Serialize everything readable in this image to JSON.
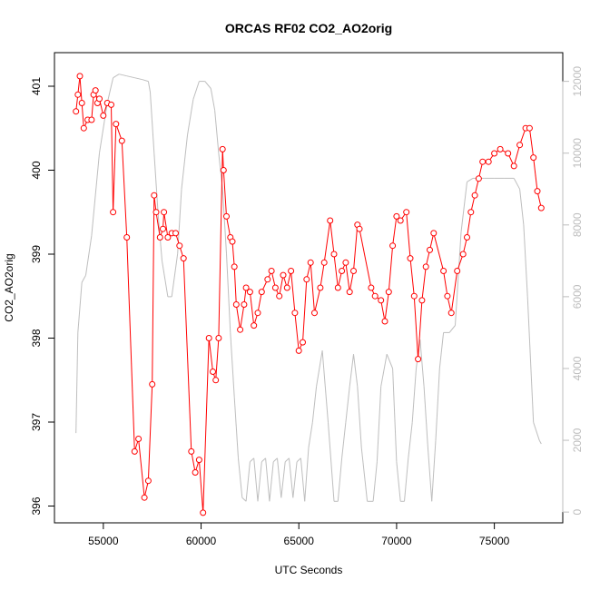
{
  "chart_data": {
    "type": "line",
    "title": "ORCAS RF02 CO2_AO2orig",
    "xlabel": "UTC Seconds",
    "ylabel": "CO2_AO2orig",
    "xlim": [
      52500,
      78500
    ],
    "ylim": [
      395.8,
      401.4
    ],
    "y2lim": [
      -300,
      12800
    ],
    "xticks": [
      55000,
      60000,
      65000,
      70000,
      75000
    ],
    "yticks": [
      396,
      397,
      398,
      399,
      400,
      401
    ],
    "y2ticks": [
      0,
      2000,
      4000,
      6000,
      8000,
      10000,
      12000
    ],
    "xtick_labels": [
      "55000",
      "60000",
      "65000",
      "70000",
      "75000"
    ],
    "ytick_labels": [
      "396",
      "397",
      "398",
      "399",
      "400",
      "401"
    ],
    "y2tick_labels": [
      "0",
      "2000",
      "4000",
      "6000",
      "8000",
      "10000",
      "12000"
    ],
    "grid": false,
    "colors": {
      "co2": "#ff0000",
      "altitude": "#bebebe",
      "right_axis": "#bdbdbd"
    },
    "series": [
      {
        "axis": "left",
        "style": "line+circle-markers",
        "x": [
          53600,
          53700,
          53800,
          53900,
          54000,
          54200,
          54400,
          54500,
          54600,
          54700,
          54800,
          55000,
          55200,
          55400,
          55500,
          55650,
          55950,
          56200,
          56600,
          56800,
          57100,
          57300,
          57500,
          57600,
          57700,
          57900,
          58050,
          58100,
          58300,
          58500,
          58700,
          58900,
          59100,
          59500,
          59700,
          59900,
          60100,
          60400,
          60600,
          60750,
          60900,
          61100,
          61150,
          61300,
          61500,
          61600,
          61700,
          61800,
          62000,
          62200,
          62300,
          62500,
          62700,
          62900,
          63100,
          63400,
          63600,
          63800,
          64000,
          64200,
          64400,
          64600,
          64800,
          65000,
          65200,
          65400,
          65600,
          65800,
          66100,
          66300,
          66600,
          66800,
          67000,
          67200,
          67400,
          67600,
          67800,
          68000,
          68100,
          68700,
          68900,
          69200,
          69400,
          69600,
          69800,
          70000,
          70200,
          70500,
          70700,
          70900,
          71100,
          71300,
          71500,
          71700,
          71900,
          72400,
          72600,
          72800,
          73100,
          73400,
          73600,
          73800,
          74000,
          74200,
          74400,
          74700,
          75000,
          75300,
          75700,
          76000,
          76300,
          76600,
          76800,
          77000,
          77200,
          77400
        ],
        "y": [
          400.7,
          400.9,
          401.12,
          400.8,
          400.5,
          400.6,
          400.6,
          400.9,
          400.95,
          400.8,
          400.85,
          400.65,
          400.8,
          400.78,
          399.5,
          400.55,
          400.35,
          399.2,
          396.65,
          396.8,
          396.1,
          396.3,
          397.45,
          399.7,
          399.5,
          399.2,
          399.3,
          399.5,
          399.2,
          399.25,
          399.25,
          399.1,
          398.95,
          396.65,
          396.4,
          396.55,
          395.92,
          398.0,
          397.6,
          397.5,
          398.0,
          400.25,
          400.0,
          399.45,
          399.2,
          399.15,
          398.85,
          398.4,
          398.1,
          398.4,
          398.6,
          398.55,
          398.15,
          398.3,
          398.55,
          398.7,
          398.8,
          398.6,
          398.5,
          398.75,
          398.6,
          398.8,
          398.3,
          397.85,
          397.95,
          398.7,
          398.9,
          398.3,
          398.6,
          398.9,
          399.4,
          399.0,
          398.6,
          398.8,
          398.9,
          398.55,
          398.8,
          399.35,
          399.3,
          398.6,
          398.5,
          398.45,
          398.2,
          398.55,
          399.1,
          399.45,
          399.4,
          399.5,
          398.95,
          398.5,
          397.75,
          398.45,
          398.85,
          399.05,
          399.25,
          398.8,
          398.5,
          398.3,
          398.8,
          399.0,
          399.2,
          399.5,
          399.7,
          399.9,
          400.1,
          400.1,
          400.2,
          400.25,
          400.2,
          400.05,
          400.3,
          400.5,
          400.5,
          400.15,
          399.75,
          399.55
        ]
      },
      {
        "axis": "right",
        "style": "line",
        "x": [
          53600,
          53700,
          53900,
          54100,
          54400,
          54800,
          55200,
          55500,
          55800,
          56200,
          56600,
          57000,
          57300,
          57400,
          57600,
          57800,
          58000,
          58300,
          58500,
          58800,
          59000,
          59300,
          59600,
          59900,
          60200,
          60500,
          60700,
          60900,
          61100,
          61300,
          61500,
          61700,
          61900,
          62100,
          62300,
          62500,
          62700,
          62900,
          63100,
          63300,
          63500,
          63700,
          63900,
          64100,
          64300,
          64500,
          64700,
          64900,
          65100,
          65300,
          65500,
          65700,
          65900,
          66200,
          66500,
          66800,
          67000,
          67200,
          67400,
          67600,
          67800,
          68000,
          68200,
          68500,
          68800,
          69000,
          69200,
          69500,
          69800,
          70000,
          70200,
          70400,
          70600,
          70800,
          71000,
          71200,
          71400,
          71600,
          71800,
          72000,
          72200,
          72400,
          72700,
          73000,
          73300,
          73600,
          73900,
          74100,
          74300,
          74500,
          75000,
          75500,
          76000,
          76300,
          76500,
          76700,
          77000,
          77300,
          77400
        ],
        "y": [
          2200,
          5000,
          6400,
          6600,
          7700,
          10000,
          11400,
          12100,
          12200,
          12150,
          12100,
          12050,
          12000,
          11700,
          10000,
          8300,
          7000,
          6000,
          6000,
          7200,
          9000,
          10500,
          11500,
          12000,
          12000,
          11800,
          11200,
          10000,
          9000,
          7200,
          5000,
          3200,
          1500,
          400,
          300,
          1400,
          1500,
          300,
          1400,
          1500,
          300,
          1400,
          1500,
          400,
          1400,
          1500,
          400,
          1400,
          1500,
          300,
          1800,
          2500,
          3500,
          4500,
          2500,
          300,
          300,
          1500,
          2500,
          3500,
          4400,
          3500,
          1800,
          300,
          300,
          1400,
          3500,
          4400,
          4000,
          1400,
          300,
          300,
          1500,
          2500,
          4000,
          4800,
          3500,
          1800,
          300,
          2000,
          4000,
          5000,
          5000,
          5200,
          7800,
          9200,
          9300,
          9300,
          9300,
          9300,
          9300,
          9300,
          9300,
          9000,
          8000,
          6000,
          2500,
          2000,
          1900
        ]
      }
    ]
  }
}
